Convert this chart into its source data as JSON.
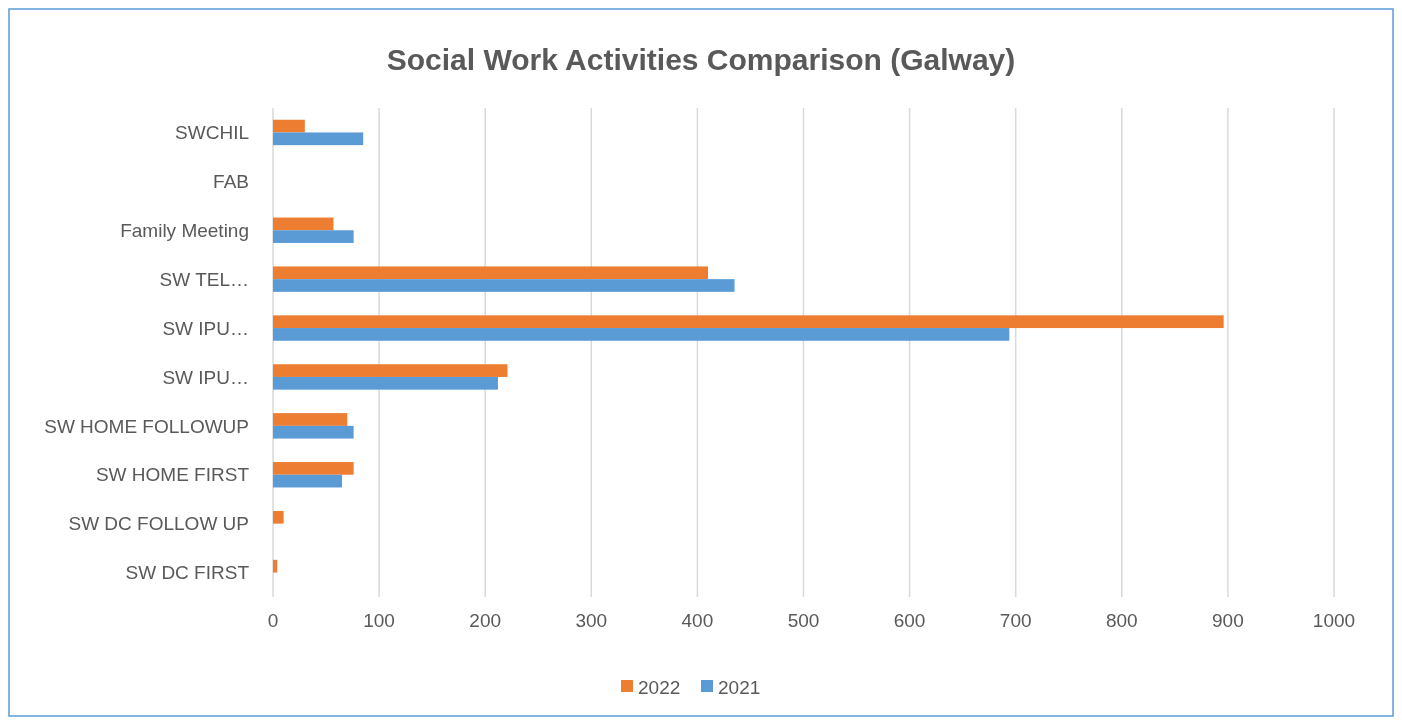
{
  "chart_data": {
    "type": "bar",
    "orientation": "horizontal",
    "title": "Social Work Activities Comparison (Galway)",
    "categories": [
      "SWCHIL",
      "FAB",
      "Family Meeting",
      "SW TEL…",
      "SW IPU…",
      "SW IPU…",
      "SW HOME FOLLOWUP",
      "SW HOME FIRST",
      "SW DC FOLLOW UP",
      "SW DC FIRST"
    ],
    "series": [
      {
        "name": "2022",
        "color": "#ed7d31",
        "values": [
          30,
          0,
          57,
          410,
          896,
          221,
          70,
          76,
          10,
          4
        ]
      },
      {
        "name": "2021",
        "color": "#5b9bd5",
        "values": [
          85,
          0,
          76,
          435,
          694,
          212,
          76,
          65,
          0,
          0
        ]
      }
    ],
    "xlim": [
      0,
      1000
    ],
    "xticks": [
      0,
      100,
      200,
      300,
      400,
      500,
      600,
      700,
      800,
      900,
      1000
    ],
    "grid": "x",
    "legend": "bottom"
  }
}
